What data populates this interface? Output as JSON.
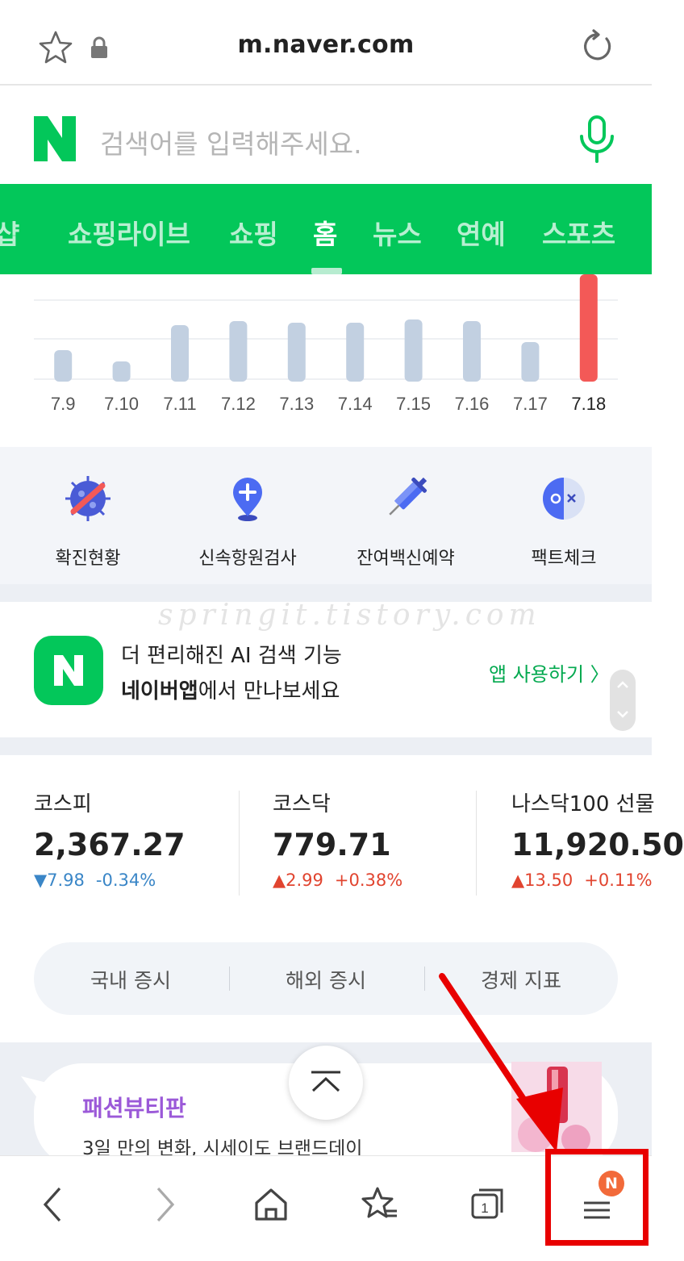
{
  "browser": {
    "url": "m.naver.com",
    "icons": [
      "star-icon",
      "lock-icon",
      "reload-icon"
    ]
  },
  "search": {
    "logo_letter": "N",
    "placeholder": "검색어를 입력해주세요.",
    "brand_color": "#03c75a"
  },
  "tabs": [
    {
      "label": "쇼핑라이브",
      "active": false
    },
    {
      "label": "쇼핑",
      "active": false
    },
    {
      "label": "홈",
      "active": true
    },
    {
      "label": "뉴스",
      "active": false
    },
    {
      "label": "연예",
      "active": false
    },
    {
      "label": "스포츠",
      "active": false
    }
  ],
  "tab_partial_left": "샵",
  "chart_data": {
    "type": "bar",
    "categories": [
      "7.9",
      "7.10",
      "7.11",
      "7.12",
      "7.13",
      "7.14",
      "7.15",
      "7.16",
      "7.17",
      "7.18"
    ],
    "values": [
      36,
      22,
      67,
      72,
      70,
      70,
      74,
      72,
      46,
      130
    ],
    "highlight_index": 9,
    "bar_color": "#c2d0e1",
    "highlight_color": "#f35957",
    "ylim": [
      0,
      130
    ],
    "grid": true
  },
  "quick_links": [
    {
      "label": "확진현황",
      "icon": "covid-virus-icon"
    },
    {
      "label": "신속항원검사",
      "icon": "location-plus-icon"
    },
    {
      "label": "잔여백신예약",
      "icon": "syringe-icon"
    },
    {
      "label": "팩트체크",
      "icon": "fact-check-icon"
    }
  ],
  "promo": {
    "watermark": "springit.tistory.com",
    "line1": "더 편리해진 AI 검색 기능",
    "line2_bold": "네이버앱",
    "line2_rest": "에서 만나보세요",
    "cta": "앱 사용하기 〉",
    "app_icon_letter": "N"
  },
  "stocks": [
    {
      "name": "코스피",
      "value": "2,367.27",
      "direction": "down",
      "change": "▼7.98",
      "percent": "-0.34%"
    },
    {
      "name": "코스닥",
      "value": "779.71",
      "direction": "up",
      "change": "▲2.99",
      "percent": "+0.38%"
    },
    {
      "name": "나스닥100 선물",
      "value": "11,920.50",
      "direction": "up",
      "change": "▲13.50",
      "percent": "+0.11%"
    }
  ],
  "market_tabs": [
    "국내 증시",
    "해외 증시",
    "경제 지표"
  ],
  "fashion": {
    "title": "패션뷰티판",
    "subtitle": "3일 만의 변화, 시세이도 브랜드데이"
  },
  "bottom_nav": {
    "items": [
      "back-icon",
      "forward-icon",
      "home-icon",
      "bookmarks-icon",
      "tabs-icon",
      "menu-icon"
    ],
    "tab_count": "1",
    "menu_badge": "N"
  },
  "annotation_color": "#e80000"
}
